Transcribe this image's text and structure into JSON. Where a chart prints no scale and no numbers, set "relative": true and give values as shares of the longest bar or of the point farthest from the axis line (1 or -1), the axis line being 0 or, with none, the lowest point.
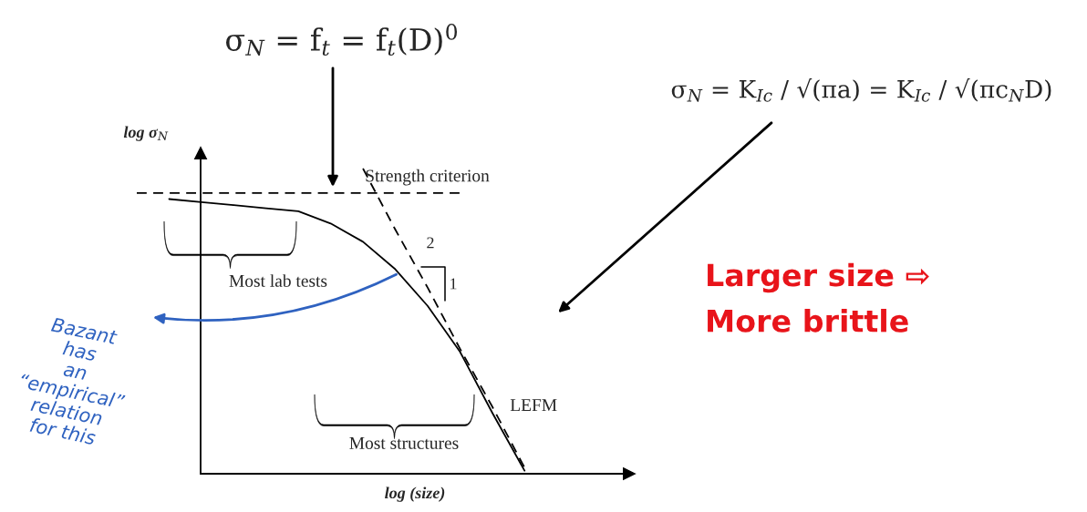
{
  "chart_data": {
    "type": "line",
    "relative": true,
    "xlabel": "log (size)",
    "ylabel": "log σ$_{N}$",
    "marker": "none",
    "categories": [
      null,
      null,
      null,
      null,
      null,
      null,
      null,
      null,
      null,
      null,
      null,
      null,
      null
    ],
    "series": [
      {
        "name": "Strength criterion",
        "color": "#000000",
        "line_style": "dashed",
        "values": [
          0.92,
          0.92,
          0.92,
          0.92,
          0.92,
          0.92,
          0.92,
          0.92,
          0.92,
          0.92,
          0.92,
          null,
          null
        ]
      },
      {
        "name": "LEFM",
        "color": "#000000",
        "line_style": "dashed",
        "values": [
          null,
          null,
          null,
          null,
          null,
          null,
          null,
          1.0,
          0.8,
          0.61,
          0.41,
          0.22,
          0.02
        ]
      },
      {
        "color": "#000000",
        "line_style": "solid",
        "values": [
          null,
          0.9,
          0.89,
          0.88,
          0.87,
          0.86,
          0.82,
          0.76,
          0.67,
          0.55,
          0.4,
          0.2,
          0.01
        ]
      }
    ],
    "annotations": [
      "σ$_{N}$ = f$_{t}$ = f$_{t}$(D)$^{0}$",
      "σ$_{N}$ = K$_{Ic}$ / √(πa) = K$_{Ic}$ / √(πc$_{N}$D)",
      "Most lab tests",
      "Most structures",
      "2",
      "1",
      "Larger size ⇨\nMore brittle",
      "Bazant\nhas\nan\n“empirical”\nrelation\nfor this"
    ]
  }
}
